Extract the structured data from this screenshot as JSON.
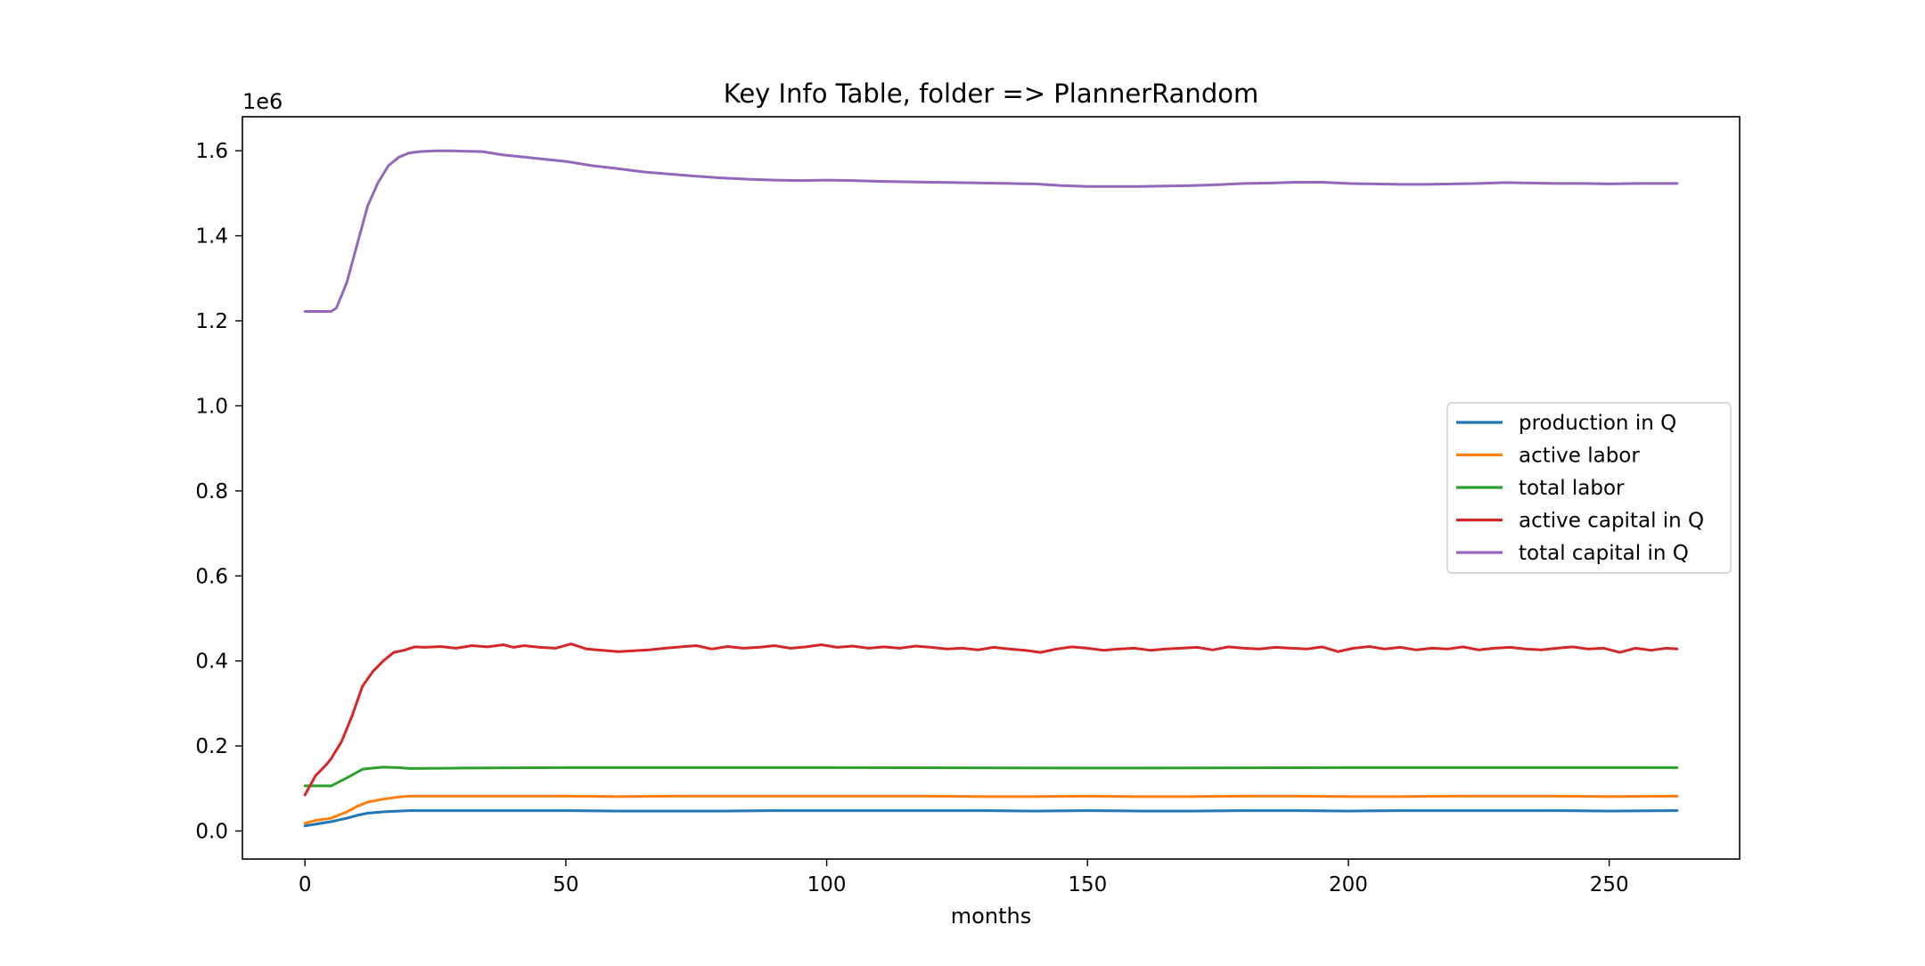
{
  "chart_data": {
    "type": "line",
    "title": "Key Info Table, folder => PlannerRandom",
    "xlabel": "months",
    "ylabel": "",
    "y_offset_label": "1e6",
    "xlim": [
      -12,
      275
    ],
    "ylim": [
      -0.066,
      1.68
    ],
    "y_scale": 1000000,
    "x_ticks": [
      0,
      50,
      100,
      150,
      200,
      250
    ],
    "x_tick_labels": [
      "0",
      "50",
      "100",
      "150",
      "200",
      "250"
    ],
    "y_ticks": [
      0.0,
      0.2,
      0.4,
      0.6,
      0.8,
      1.0,
      1.2,
      1.4,
      1.6
    ],
    "y_tick_labels": [
      "0.0",
      "0.2",
      "0.4",
      "0.6",
      "0.8",
      "1.0",
      "1.2",
      "1.4",
      "1.6"
    ],
    "grid": false,
    "legend_position": "center-right",
    "series": [
      {
        "name": "production in Q",
        "color": "#1f77b4",
        "x": [
          0,
          3,
          5,
          8,
          10,
          12,
          15,
          18,
          20,
          25,
          30,
          40,
          50,
          60,
          70,
          80,
          90,
          100,
          110,
          120,
          130,
          140,
          150,
          160,
          170,
          180,
          190,
          200,
          210,
          220,
          230,
          240,
          250,
          263
        ],
        "y": [
          0.012,
          0.018,
          0.022,
          0.03,
          0.037,
          0.042,
          0.045,
          0.047,
          0.048,
          0.048,
          0.048,
          0.048,
          0.048,
          0.047,
          0.047,
          0.047,
          0.048,
          0.048,
          0.048,
          0.048,
          0.048,
          0.047,
          0.048,
          0.047,
          0.047,
          0.048,
          0.048,
          0.047,
          0.048,
          0.048,
          0.048,
          0.048,
          0.047,
          0.048
        ]
      },
      {
        "name": "active labor",
        "color": "#ff7f0e",
        "x": [
          0,
          2,
          5,
          8,
          10,
          12,
          15,
          18,
          20,
          25,
          30,
          40,
          50,
          60,
          70,
          80,
          90,
          100,
          110,
          120,
          130,
          140,
          150,
          160,
          170,
          180,
          190,
          200,
          210,
          220,
          230,
          240,
          250,
          263
        ],
        "y": [
          0.018,
          0.025,
          0.03,
          0.045,
          0.058,
          0.068,
          0.075,
          0.08,
          0.082,
          0.082,
          0.082,
          0.082,
          0.082,
          0.081,
          0.082,
          0.082,
          0.082,
          0.082,
          0.082,
          0.082,
          0.081,
          0.081,
          0.082,
          0.081,
          0.081,
          0.082,
          0.082,
          0.081,
          0.081,
          0.082,
          0.082,
          0.082,
          0.081,
          0.082
        ]
      },
      {
        "name": "total labor",
        "color": "#2ca02c",
        "x": [
          0,
          3,
          5,
          8,
          11,
          13,
          15,
          18,
          20,
          30,
          50,
          100,
          150,
          200,
          250,
          263
        ],
        "y": [
          0.106,
          0.106,
          0.106,
          0.125,
          0.145,
          0.148,
          0.15,
          0.149,
          0.147,
          0.148,
          0.149,
          0.149,
          0.148,
          0.149,
          0.149,
          0.149
        ]
      },
      {
        "name": "active capital in Q",
        "color": "#d62728",
        "x": [
          0,
          2,
          4,
          5,
          7,
          9,
          11,
          13,
          15,
          17,
          19,
          21,
          23,
          26,
          29,
          32,
          35,
          38,
          40,
          42,
          45,
          48,
          51,
          54,
          57,
          60,
          63,
          66,
          69,
          72,
          75,
          78,
          81,
          84,
          87,
          90,
          93,
          96,
          99,
          102,
          105,
          108,
          111,
          114,
          117,
          120,
          123,
          126,
          129,
          132,
          135,
          138,
          141,
          144,
          147,
          150,
          153,
          156,
          159,
          162,
          165,
          168,
          171,
          174,
          177,
          180,
          183,
          186,
          189,
          192,
          195,
          198,
          201,
          204,
          207,
          210,
          213,
          216,
          219,
          222,
          225,
          228,
          231,
          234,
          237,
          240,
          243,
          246,
          249,
          252,
          255,
          258,
          261,
          263
        ],
        "y": [
          0.085,
          0.13,
          0.155,
          0.17,
          0.21,
          0.27,
          0.34,
          0.375,
          0.4,
          0.42,
          0.425,
          0.433,
          0.432,
          0.434,
          0.43,
          0.436,
          0.433,
          0.438,
          0.432,
          0.436,
          0.432,
          0.43,
          0.44,
          0.428,
          0.425,
          0.422,
          0.424,
          0.426,
          0.43,
          0.433,
          0.436,
          0.428,
          0.434,
          0.43,
          0.432,
          0.436,
          0.43,
          0.433,
          0.438,
          0.432,
          0.435,
          0.43,
          0.433,
          0.43,
          0.435,
          0.432,
          0.428,
          0.43,
          0.426,
          0.432,
          0.428,
          0.425,
          0.42,
          0.428,
          0.433,
          0.43,
          0.425,
          0.428,
          0.43,
          0.425,
          0.428,
          0.43,
          0.432,
          0.426,
          0.433,
          0.43,
          0.428,
          0.432,
          0.43,
          0.428,
          0.433,
          0.422,
          0.43,
          0.434,
          0.428,
          0.432,
          0.426,
          0.43,
          0.428,
          0.433,
          0.426,
          0.43,
          0.432,
          0.428,
          0.426,
          0.43,
          0.433,
          0.428,
          0.43,
          0.42,
          0.43,
          0.425,
          0.43,
          0.428
        ]
      },
      {
        "name": "total capital in Q",
        "color": "#9467bd",
        "x": [
          0,
          2,
          4,
          5,
          6,
          8,
          10,
          12,
          14,
          16,
          18,
          20,
          22,
          25,
          28,
          30,
          34,
          38,
          42,
          46,
          50,
          55,
          60,
          65,
          70,
          75,
          80,
          85,
          90,
          95,
          100,
          105,
          110,
          115,
          120,
          125,
          130,
          135,
          140,
          145,
          150,
          155,
          160,
          165,
          170,
          175,
          180,
          185,
          190,
          195,
          200,
          205,
          210,
          215,
          220,
          225,
          230,
          235,
          240,
          245,
          250,
          255,
          260,
          263
        ],
        "y": [
          1.222,
          1.222,
          1.222,
          1.222,
          1.23,
          1.29,
          1.38,
          1.47,
          1.525,
          1.565,
          1.585,
          1.595,
          1.598,
          1.6,
          1.6,
          1.599,
          1.598,
          1.59,
          1.585,
          1.58,
          1.575,
          1.565,
          1.558,
          1.55,
          1.545,
          1.54,
          1.536,
          1.533,
          1.531,
          1.53,
          1.531,
          1.53,
          1.528,
          1.527,
          1.526,
          1.525,
          1.524,
          1.523,
          1.522,
          1.518,
          1.516,
          1.516,
          1.516,
          1.517,
          1.518,
          1.52,
          1.523,
          1.524,
          1.526,
          1.526,
          1.523,
          1.522,
          1.521,
          1.521,
          1.522,
          1.523,
          1.525,
          1.524,
          1.523,
          1.523,
          1.522,
          1.523,
          1.523,
          1.523
        ]
      }
    ]
  }
}
